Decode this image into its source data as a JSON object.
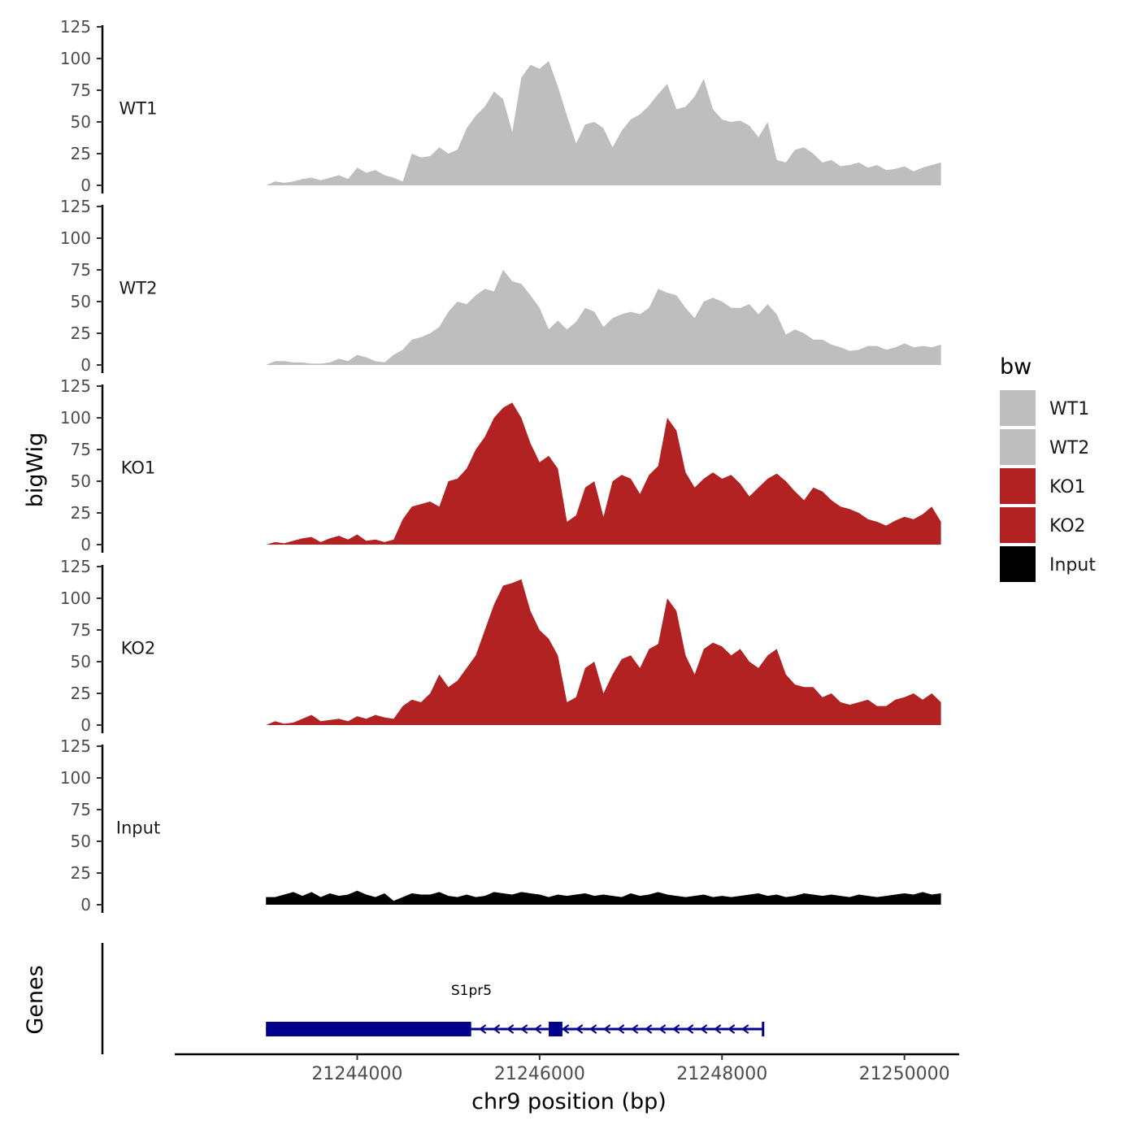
{
  "chart_data": {
    "type": "area",
    "y_title": "bigWig",
    "x_title": "chr9 position (bp)",
    "genes_title": "Genes",
    "legend_title": "bw",
    "y_ticks": [
      "0",
      "25",
      "50",
      "75",
      "100",
      "125"
    ],
    "ylim": [
      0,
      125
    ],
    "x_ticks": [
      {
        "value": 21244000,
        "label": "21244000"
      },
      {
        "value": 21246000,
        "label": "21246000"
      },
      {
        "value": 21248000,
        "label": "21248000"
      },
      {
        "value": 21250000,
        "label": "21250000"
      }
    ],
    "xlim": [
      21242000,
      21250600
    ],
    "x": [
      21243000,
      21243100,
      21243200,
      21243300,
      21243400,
      21243500,
      21243600,
      21243700,
      21243800,
      21243900,
      21244000,
      21244100,
      21244200,
      21244300,
      21244400,
      21244500,
      21244600,
      21244700,
      21244800,
      21244900,
      21245000,
      21245100,
      21245200,
      21245300,
      21245400,
      21245500,
      21245600,
      21245700,
      21245800,
      21245900,
      21246000,
      21246100,
      21246200,
      21246300,
      21246400,
      21246500,
      21246600,
      21246700,
      21246800,
      21246900,
      21247000,
      21247100,
      21247200,
      21247300,
      21247400,
      21247500,
      21247600,
      21247700,
      21247800,
      21247900,
      21248000,
      21248100,
      21248200,
      21248300,
      21248400,
      21248500,
      21248600,
      21248700,
      21248800,
      21248900,
      21249000,
      21249100,
      21249200,
      21249300,
      21249400,
      21249500,
      21249600,
      21249700,
      21249800,
      21249900,
      21250000,
      21250100,
      21250200,
      21250300,
      21250400
    ],
    "series": [
      {
        "name": "WT1",
        "color": "#bebebe",
        "values": [
          0,
          3,
          2,
          3,
          5,
          6,
          4,
          6,
          8,
          5,
          14,
          10,
          12,
          8,
          6,
          3,
          25,
          22,
          23,
          30,
          25,
          28,
          45,
          55,
          62,
          74,
          68,
          42,
          85,
          95,
          92,
          98,
          78,
          55,
          33,
          48,
          50,
          45,
          30,
          43,
          52,
          56,
          63,
          72,
          80,
          60,
          62,
          70,
          84,
          60,
          52,
          50,
          51,
          47,
          38,
          50,
          20,
          18,
          28,
          30,
          25,
          18,
          20,
          15,
          16,
          18,
          14,
          16,
          12,
          13,
          15,
          11,
          14,
          16,
          18
        ]
      },
      {
        "name": "WT2",
        "color": "#bebebe",
        "values": [
          0,
          3,
          3,
          2,
          2,
          1,
          1,
          2,
          5,
          3,
          8,
          6,
          3,
          2,
          8,
          12,
          20,
          22,
          25,
          30,
          42,
          50,
          48,
          55,
          60,
          58,
          75,
          66,
          64,
          55,
          45,
          28,
          35,
          28,
          34,
          45,
          42,
          30,
          37,
          40,
          42,
          40,
          45,
          60,
          57,
          55,
          45,
          37,
          50,
          53,
          50,
          45,
          45,
          48,
          40,
          48,
          40,
          24,
          28,
          25,
          20,
          20,
          16,
          14,
          11,
          12,
          15,
          15,
          12,
          14,
          17,
          14,
          15,
          14,
          16
        ]
      },
      {
        "name": "KO1",
        "color": "#b22222",
        "values": [
          0,
          2,
          1,
          3,
          5,
          6,
          2,
          5,
          7,
          4,
          8,
          3,
          4,
          2,
          4,
          20,
          30,
          32,
          34,
          30,
          50,
          52,
          60,
          75,
          85,
          100,
          108,
          112,
          100,
          80,
          65,
          70,
          60,
          18,
          23,
          45,
          50,
          22,
          50,
          55,
          52,
          40,
          55,
          62,
          100,
          90,
          57,
          45,
          52,
          57,
          52,
          55,
          48,
          38,
          45,
          52,
          56,
          50,
          42,
          35,
          45,
          42,
          35,
          30,
          28,
          25,
          20,
          18,
          15,
          19,
          22,
          20,
          24,
          30,
          18
        ]
      },
      {
        "name": "KO2",
        "color": "#b22222",
        "values": [
          0,
          3,
          1,
          2,
          5,
          8,
          3,
          4,
          5,
          3,
          7,
          5,
          8,
          6,
          5,
          15,
          20,
          18,
          25,
          40,
          30,
          35,
          45,
          55,
          75,
          95,
          110,
          112,
          115,
          90,
          75,
          68,
          55,
          18,
          22,
          45,
          50,
          25,
          40,
          52,
          55,
          45,
          60,
          64,
          100,
          90,
          55,
          40,
          60,
          65,
          62,
          55,
          60,
          50,
          45,
          55,
          60,
          40,
          32,
          30,
          30,
          22,
          25,
          18,
          16,
          18,
          20,
          15,
          15,
          20,
          22,
          25,
          20,
          25,
          18
        ]
      },
      {
        "name": "Input",
        "color": "#000000",
        "values": [
          6,
          6,
          8,
          10,
          7,
          10,
          6,
          9,
          7,
          8,
          11,
          8,
          6,
          9,
          3,
          6,
          9,
          8,
          8,
          10,
          7,
          6,
          8,
          6,
          7,
          10,
          9,
          8,
          10,
          9,
          8,
          6,
          8,
          7,
          8,
          9,
          7,
          8,
          7,
          6,
          9,
          7,
          8,
          10,
          8,
          7,
          6,
          7,
          8,
          6,
          7,
          6,
          7,
          8,
          9,
          7,
          8,
          6,
          7,
          9,
          8,
          7,
          8,
          7,
          6,
          8,
          7,
          6,
          7,
          8,
          9,
          8,
          10,
          8,
          9
        ]
      }
    ],
    "gene": {
      "name": "S1pr5",
      "start": 21243000,
      "end": 21248450,
      "strand": "-",
      "color": "#00008b",
      "exons": [
        [
          21243000,
          21245250
        ],
        [
          21246100,
          21246250
        ]
      ]
    }
  }
}
